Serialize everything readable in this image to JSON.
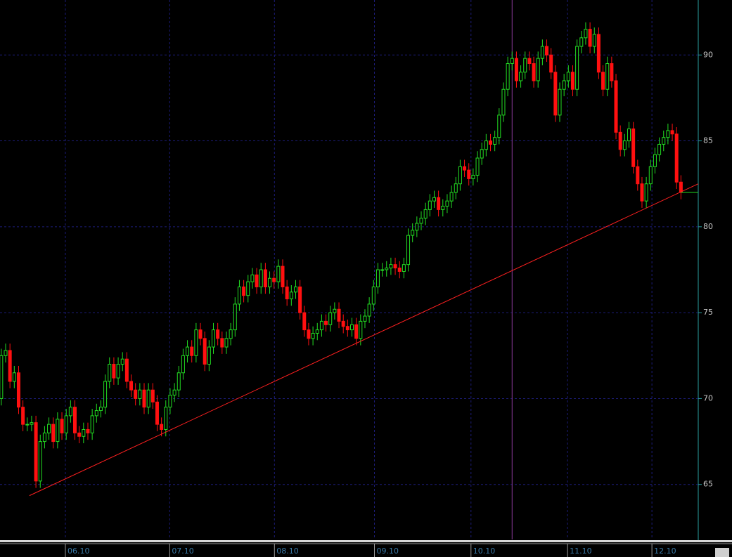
{
  "chart_data": {
    "type": "candlestick",
    "ohlc": [
      [
        70.0,
        72.9,
        69.6,
        72.5
      ],
      [
        72.5,
        73.2,
        72.1,
        72.8
      ],
      [
        72.8,
        73.2,
        70.6,
        71.0
      ],
      [
        71.0,
        71.9,
        70.6,
        71.5
      ],
      [
        71.5,
        71.9,
        69.1,
        69.5
      ],
      [
        69.5,
        69.9,
        68.1,
        68.5
      ],
      [
        68.5,
        68.9,
        68.1,
        68.5
      ],
      [
        68.5,
        69.0,
        68.1,
        68.6
      ],
      [
        68.6,
        69.0,
        64.8,
        65.2
      ],
      [
        65.2,
        67.9,
        64.8,
        67.5
      ],
      [
        67.5,
        68.4,
        67.1,
        68.0
      ],
      [
        68.0,
        68.9,
        67.6,
        68.5
      ],
      [
        68.5,
        68.9,
        67.1,
        67.5
      ],
      [
        67.5,
        69.2,
        67.1,
        68.8
      ],
      [
        68.8,
        69.2,
        67.6,
        68.0
      ],
      [
        68.0,
        69.4,
        67.6,
        69.0
      ],
      [
        69.0,
        69.9,
        68.6,
        69.5
      ],
      [
        69.5,
        69.9,
        67.6,
        68.0
      ],
      [
        68.0,
        68.4,
        67.4,
        67.8
      ],
      [
        67.8,
        68.6,
        67.4,
        68.2
      ],
      [
        68.2,
        68.6,
        67.6,
        68.0
      ],
      [
        68.0,
        69.4,
        67.6,
        69.0
      ],
      [
        69.0,
        69.7,
        68.6,
        69.3
      ],
      [
        69.3,
        69.9,
        68.9,
        69.5
      ],
      [
        69.5,
        71.4,
        69.1,
        71.0
      ],
      [
        71.0,
        72.4,
        70.6,
        72.0
      ],
      [
        72.0,
        72.4,
        70.8,
        71.2
      ],
      [
        71.2,
        72.4,
        70.8,
        72.0
      ],
      [
        72.0,
        72.7,
        71.6,
        72.3
      ],
      [
        72.3,
        72.7,
        70.6,
        71.0
      ],
      [
        71.0,
        71.4,
        70.1,
        70.5
      ],
      [
        70.5,
        70.9,
        69.6,
        70.0
      ],
      [
        70.0,
        70.9,
        69.6,
        70.5
      ],
      [
        70.5,
        70.9,
        69.1,
        69.5
      ],
      [
        69.5,
        70.9,
        69.1,
        70.5
      ],
      [
        70.5,
        70.9,
        69.4,
        69.8
      ],
      [
        69.8,
        70.2,
        68.1,
        68.5
      ],
      [
        68.5,
        68.9,
        67.8,
        68.2
      ],
      [
        68.2,
        69.9,
        67.8,
        69.5
      ],
      [
        69.5,
        70.6,
        69.1,
        70.2
      ],
      [
        70.2,
        70.9,
        69.8,
        70.5
      ],
      [
        70.5,
        71.9,
        70.1,
        71.5
      ],
      [
        71.5,
        72.9,
        71.1,
        72.5
      ],
      [
        72.5,
        73.4,
        72.1,
        73.0
      ],
      [
        73.0,
        73.4,
        72.1,
        72.5
      ],
      [
        72.5,
        74.4,
        72.1,
        74.0
      ],
      [
        74.0,
        74.4,
        73.1,
        73.5
      ],
      [
        73.5,
        73.9,
        71.6,
        72.0
      ],
      [
        72.0,
        73.4,
        71.6,
        73.0
      ],
      [
        73.0,
        74.4,
        72.6,
        74.0
      ],
      [
        74.0,
        74.4,
        73.1,
        73.5
      ],
      [
        73.5,
        73.9,
        72.6,
        73.0
      ],
      [
        73.0,
        73.9,
        72.6,
        73.5
      ],
      [
        73.5,
        74.4,
        73.1,
        74.0
      ],
      [
        74.0,
        75.9,
        73.6,
        75.5
      ],
      [
        75.5,
        76.9,
        75.1,
        76.5
      ],
      [
        76.5,
        76.9,
        75.6,
        76.0
      ],
      [
        76.0,
        77.2,
        75.6,
        76.8
      ],
      [
        76.8,
        77.6,
        76.4,
        77.2
      ],
      [
        77.2,
        77.6,
        76.1,
        76.5
      ],
      [
        76.5,
        77.9,
        76.1,
        77.5
      ],
      [
        77.5,
        77.9,
        76.1,
        76.5
      ],
      [
        76.5,
        77.4,
        76.1,
        77.0
      ],
      [
        77.0,
        77.4,
        76.4,
        76.8
      ],
      [
        76.8,
        78.1,
        76.4,
        77.7
      ],
      [
        77.7,
        78.1,
        76.1,
        76.5
      ],
      [
        76.5,
        76.9,
        75.4,
        75.8
      ],
      [
        75.8,
        76.6,
        75.4,
        76.2
      ],
      [
        76.2,
        76.9,
        75.8,
        76.5
      ],
      [
        76.5,
        76.9,
        74.6,
        75.0
      ],
      [
        75.0,
        75.4,
        73.6,
        74.0
      ],
      [
        74.0,
        74.4,
        73.1,
        73.5
      ],
      [
        73.5,
        74.2,
        73.1,
        73.8
      ],
      [
        73.8,
        74.4,
        73.4,
        74.0
      ],
      [
        74.0,
        74.9,
        73.6,
        74.5
      ],
      [
        74.5,
        74.9,
        73.9,
        74.3
      ],
      [
        74.3,
        75.4,
        73.9,
        75.0
      ],
      [
        75.0,
        75.6,
        74.6,
        75.2
      ],
      [
        75.2,
        75.6,
        74.1,
        74.5
      ],
      [
        74.5,
        74.9,
        73.8,
        74.2
      ],
      [
        74.2,
        74.6,
        73.6,
        74.0
      ],
      [
        74.0,
        74.7,
        73.6,
        74.3
      ],
      [
        74.3,
        74.7,
        73.1,
        73.5
      ],
      [
        73.5,
        74.9,
        73.1,
        74.5
      ],
      [
        74.5,
        75.2,
        74.1,
        74.8
      ],
      [
        74.8,
        75.9,
        74.4,
        75.5
      ],
      [
        75.5,
        76.9,
        75.1,
        76.5
      ],
      [
        76.5,
        77.9,
        76.1,
        77.5
      ],
      [
        77.5,
        77.9,
        77.1,
        77.5
      ],
      [
        77.5,
        78.0,
        77.1,
        77.6
      ],
      [
        77.6,
        78.2,
        77.2,
        77.8
      ],
      [
        77.8,
        78.2,
        77.2,
        77.6
      ],
      [
        77.6,
        78.0,
        77.0,
        77.4
      ],
      [
        77.4,
        78.2,
        77.0,
        77.8
      ],
      [
        77.8,
        79.9,
        77.4,
        79.5
      ],
      [
        79.5,
        80.2,
        79.1,
        79.8
      ],
      [
        79.8,
        80.6,
        79.4,
        80.2
      ],
      [
        80.2,
        80.9,
        79.8,
        80.5
      ],
      [
        80.5,
        81.4,
        80.1,
        81.0
      ],
      [
        81.0,
        81.9,
        80.6,
        81.5
      ],
      [
        81.5,
        82.1,
        81.1,
        81.7
      ],
      [
        81.7,
        82.1,
        80.6,
        81.0
      ],
      [
        81.0,
        81.6,
        80.6,
        81.2
      ],
      [
        81.2,
        81.9,
        80.8,
        81.5
      ],
      [
        81.5,
        82.4,
        81.1,
        82.0
      ],
      [
        82.0,
        82.9,
        81.6,
        82.5
      ],
      [
        82.5,
        83.9,
        82.1,
        83.5
      ],
      [
        83.5,
        83.9,
        82.9,
        83.3
      ],
      [
        83.3,
        83.7,
        82.4,
        82.8
      ],
      [
        82.8,
        83.4,
        82.4,
        83.0
      ],
      [
        83.0,
        84.4,
        82.6,
        84.0
      ],
      [
        84.0,
        84.9,
        83.6,
        84.5
      ],
      [
        84.5,
        85.4,
        84.1,
        85.0
      ],
      [
        85.0,
        85.4,
        84.4,
        84.8
      ],
      [
        84.8,
        85.6,
        84.4,
        85.2
      ],
      [
        85.2,
        86.9,
        84.8,
        86.5
      ],
      [
        86.5,
        88.4,
        86.1,
        88.0
      ],
      [
        88.0,
        89.9,
        87.6,
        89.5
      ],
      [
        89.5,
        90.2,
        89.1,
        89.8
      ],
      [
        89.8,
        90.2,
        88.1,
        88.5
      ],
      [
        88.5,
        89.4,
        88.1,
        89.0
      ],
      [
        89.0,
        90.2,
        88.6,
        89.8
      ],
      [
        89.8,
        90.2,
        89.1,
        89.5
      ],
      [
        89.5,
        89.9,
        88.1,
        88.5
      ],
      [
        88.5,
        90.2,
        88.1,
        89.8
      ],
      [
        89.8,
        90.9,
        89.4,
        90.5
      ],
      [
        90.5,
        90.9,
        89.6,
        90.0
      ],
      [
        90.0,
        90.4,
        88.6,
        89.0
      ],
      [
        89.0,
        89.4,
        86.1,
        86.5
      ],
      [
        86.5,
        88.4,
        86.1,
        88.0
      ],
      [
        88.0,
        88.9,
        87.6,
        88.5
      ],
      [
        88.5,
        89.4,
        88.1,
        89.0
      ],
      [
        89.0,
        89.4,
        87.6,
        88.0
      ],
      [
        88.0,
        90.9,
        87.6,
        90.5
      ],
      [
        90.5,
        91.4,
        90.1,
        91.0
      ],
      [
        91.0,
        91.9,
        90.6,
        91.5
      ],
      [
        91.5,
        91.9,
        90.1,
        90.5
      ],
      [
        90.5,
        91.6,
        90.1,
        91.2
      ],
      [
        91.2,
        91.6,
        88.6,
        89.0
      ],
      [
        89.0,
        89.4,
        87.6,
        88.0
      ],
      [
        88.0,
        89.9,
        87.6,
        89.5
      ],
      [
        89.5,
        89.9,
        88.1,
        88.5
      ],
      [
        88.5,
        88.9,
        85.1,
        85.5
      ],
      [
        85.5,
        85.9,
        84.1,
        84.5
      ],
      [
        84.5,
        85.4,
        84.1,
        85.0
      ],
      [
        85.0,
        86.1,
        84.6,
        85.7
      ],
      [
        85.7,
        86.1,
        83.1,
        83.5
      ],
      [
        83.5,
        83.9,
        82.1,
        82.5
      ],
      [
        82.5,
        82.9,
        81.1,
        81.5
      ],
      [
        81.5,
        82.9,
        81.1,
        82.5
      ],
      [
        82.5,
        83.9,
        82.1,
        83.5
      ],
      [
        83.5,
        84.6,
        83.1,
        84.2
      ],
      [
        84.2,
        85.2,
        83.8,
        84.8
      ],
      [
        84.8,
        85.6,
        84.4,
        85.2
      ],
      [
        85.2,
        86.0,
        84.8,
        85.6
      ],
      [
        85.6,
        86.0,
        85.0,
        85.4
      ],
      [
        85.4,
        85.8,
        82.2,
        82.6
      ],
      [
        82.6,
        83.0,
        81.6,
        82.0
      ]
    ],
    "up_color": "#22dd22",
    "down_color": "#ff1010",
    "xlim": [
      -0.3,
      161
    ],
    "ylim": [
      61.8,
      93.2
    ],
    "xticks": [
      {
        "value": 14.8,
        "label": "06.10"
      },
      {
        "value": 38.9,
        "label": "07.10"
      },
      {
        "value": 63.1,
        "label": "08.10"
      },
      {
        "value": 86.2,
        "label": "09.10"
      },
      {
        "value": 108.5,
        "label": "10.10"
      },
      {
        "value": 130.8,
        "label": "11.10"
      },
      {
        "value": 150.3,
        "label": "12.10"
      }
    ],
    "yticks": [
      65,
      70,
      75,
      80,
      85,
      90
    ],
    "grid": true,
    "trendline": {
      "x": [
        6.5,
        161
      ],
      "y": [
        64.35,
        82.5
      ],
      "color": "#ff2020"
    },
    "cursor_x": 118,
    "last_price": 82.0
  }
}
